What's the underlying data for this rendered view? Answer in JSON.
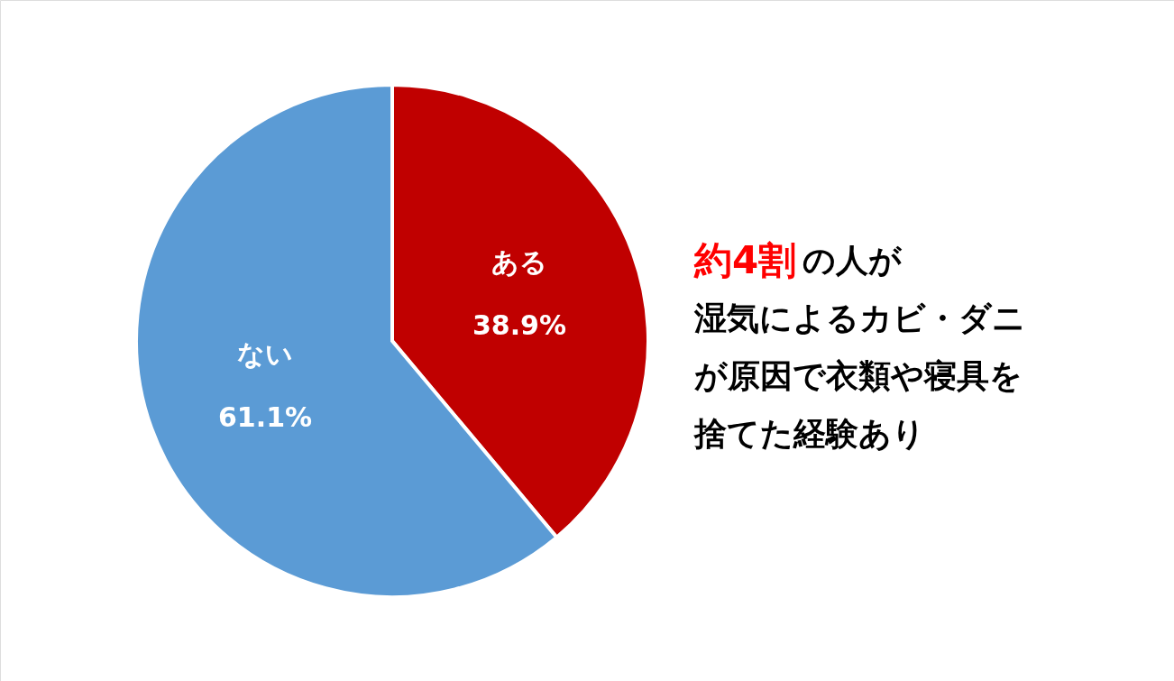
{
  "chart_data": {
    "type": "pie",
    "categories": [
      "ある",
      "ない"
    ],
    "values": [
      38.9,
      61.1
    ],
    "colors": [
      "#c00000",
      "#5b9bd5"
    ],
    "value_labels": [
      "38.9%",
      "61.1%"
    ],
    "annotations": [
      "約4割",
      "の人が",
      "湿気によるカビ・ダニ",
      "が原因で衣類や寝具を",
      "捨てた経験あり"
    ]
  }
}
